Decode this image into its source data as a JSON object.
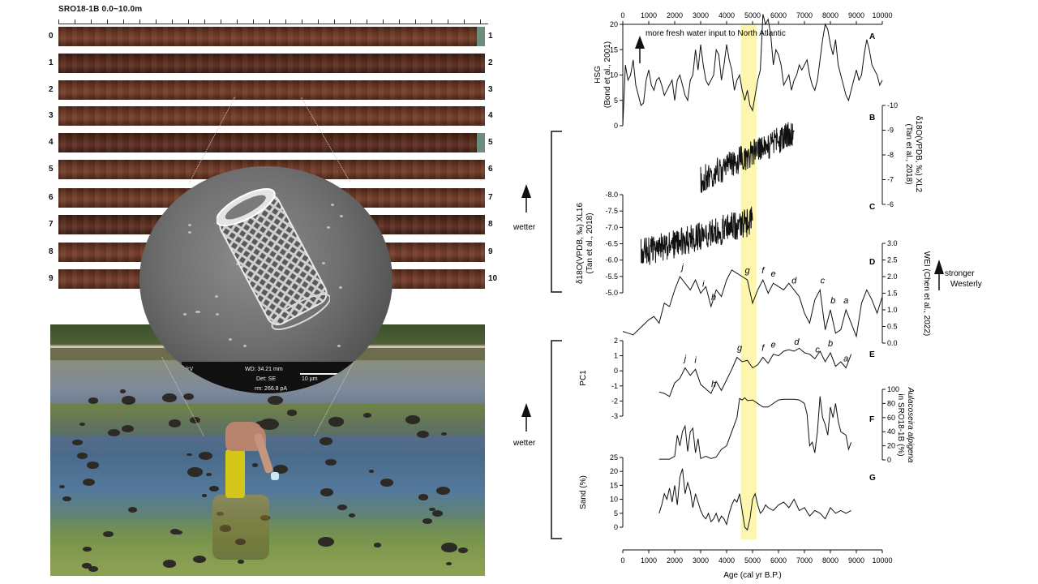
{
  "figure": {
    "core_title": "SRO18-1B 0.0~10.0m",
    "left_depth_labels": [
      "0",
      "1",
      "2",
      "3",
      "4",
      "5",
      "6",
      "7",
      "8",
      "9"
    ],
    "right_depth_labels": [
      "1",
      "2",
      "3",
      "4",
      "5",
      "6",
      "7",
      "8",
      "9",
      "10"
    ],
    "sem_info": {
      "kv": "kV",
      "wd": "WD: 34.21 mm",
      "det": "Det: SE",
      "scale": "10 µm",
      "current": "rm: 266.8 pA"
    }
  },
  "annotations": {
    "fresh_water": "more fresh water input to North Atlantic",
    "wetter_upper": "wetter",
    "wetter_lower": "wetter",
    "stronger_westerly": "stronger Westerly",
    "highlight_band": "4500-5200 cal yr B.P."
  },
  "chart_data": [
    {
      "type": "line",
      "panel": "A",
      "ylabel": "HSG",
      "ylabel2": "(Bond et al., 2001)",
      "ylim": [
        0,
        20
      ],
      "yticks": [
        "0",
        "5",
        "10",
        "15",
        "20"
      ],
      "x": [
        0,
        100,
        200,
        300,
        400,
        500,
        600,
        700,
        800,
        900,
        1000,
        1100,
        1200,
        1300,
        1400,
        1500,
        1600,
        1700,
        1800,
        1900,
        2000,
        2100,
        2200,
        2300,
        2400,
        2500,
        2600,
        2700,
        2800,
        2900,
        3000,
        3100,
        3200,
        3300,
        3400,
        3500,
        3600,
        3700,
        3800,
        3900,
        4000,
        4100,
        4200,
        4300,
        4400,
        4500,
        4600,
        4700,
        4800,
        4900,
        5000,
        5100,
        5200,
        5300,
        5400,
        5500,
        5600,
        5700,
        5800,
        5900,
        6000,
        6100,
        6200,
        6300,
        6400,
        6500,
        6600,
        6700,
        6800,
        6900,
        7000,
        7100,
        7200,
        7300,
        7400,
        7500,
        7600,
        7700,
        7800,
        7900,
        8000,
        8100,
        8200,
        8300,
        8400,
        8500,
        8600,
        8700,
        8800,
        8900,
        9000,
        9100,
        9200,
        9300,
        9400,
        9500,
        9600,
        9700,
        9800,
        9900,
        10000
      ],
      "y": [
        0,
        12,
        9,
        10,
        13,
        8,
        6,
        4,
        4.5,
        9,
        11,
        8,
        7,
        9,
        9.5,
        8,
        6,
        7,
        8,
        9,
        5,
        9,
        10,
        8,
        6,
        5,
        9,
        10,
        15,
        11,
        16,
        12,
        9,
        8,
        9,
        10,
        15,
        14,
        9,
        12,
        16,
        13,
        11,
        7,
        9,
        10,
        7,
        5,
        7,
        4,
        3,
        6,
        9,
        11,
        22,
        20,
        21,
        18,
        12,
        15,
        14,
        12,
        8,
        9,
        10,
        7,
        9,
        10,
        12,
        11,
        12,
        13,
        10,
        8,
        7,
        9,
        13,
        17,
        20,
        19,
        16,
        14,
        17,
        12,
        10,
        8,
        6,
        5,
        7,
        9,
        11,
        9,
        10,
        14,
        17,
        15,
        12,
        11,
        10,
        8,
        9
      ],
      "label": "A"
    },
    {
      "type": "line",
      "panel": "B",
      "ylabel": "δ18O(VPDB, ‰) XL2",
      "ylabel2": "(Tan et al., 2018)",
      "ylim": [
        -10,
        -6
      ],
      "yticks": [
        "-10",
        "-9",
        "-8",
        "-7",
        "-6"
      ],
      "x_range": [
        3000,
        6600
      ],
      "label": "B"
    },
    {
      "type": "line",
      "panel": "C",
      "ylabel": "δ18O(VPDB, ‰) XL16",
      "ylabel2": "(Tan et al., 2018)",
      "ylim": [
        -8.0,
        -5.0
      ],
      "yticks": [
        "-8.0",
        "-7.5",
        "-7.0",
        "-6.5",
        "-6.0",
        "-5.5",
        "-5.0"
      ],
      "x_range": [
        700,
        5000
      ],
      "label": "C"
    },
    {
      "type": "line",
      "panel": "D",
      "ylabel": "WEI (Chen et al., 2022)",
      "ylim": [
        0,
        3
      ],
      "yticks": [
        "0.0",
        "0.5",
        "1.0",
        "1.5",
        "2.0",
        "2.5",
        "3.0"
      ],
      "x": [
        0,
        200,
        400,
        600,
        800,
        1000,
        1200,
        1400,
        1600,
        1800,
        2000,
        2200,
        2400,
        2600,
        2800,
        3000,
        3200,
        3400,
        3600,
        3800,
        4000,
        4200,
        4400,
        4600,
        4800,
        5000,
        5200,
        5400,
        5600,
        5800,
        6000,
        6200,
        6400,
        6600,
        6800,
        7000,
        7200,
        7400,
        7600,
        7800,
        8000,
        8200,
        8400,
        8600,
        8800,
        9000,
        9200,
        9400,
        9600,
        9800,
        10000
      ],
      "y": [
        0.35,
        0.3,
        0.25,
        0.4,
        0.55,
        0.7,
        0.8,
        0.6,
        1.2,
        1.1,
        1.6,
        2.0,
        1.8,
        1.6,
        1.9,
        1.5,
        1.7,
        1.1,
        1.6,
        1.4,
        1.9,
        2.2,
        2.1,
        2.0,
        1.9,
        1.2,
        1.6,
        1.9,
        1.5,
        1.8,
        1.7,
        1.6,
        1.8,
        1.6,
        1.4,
        0.9,
        0.6,
        1.3,
        1.6,
        0.4,
        1.0,
        0.3,
        0.4,
        1.0,
        0.6,
        0.2,
        1.2,
        1.6,
        1.3,
        0.9,
        1.4
      ],
      "peaks": [
        {
          "t": "j",
          "x": 2300
        },
        {
          "t": "i",
          "x": 3100
        },
        {
          "t": "h",
          "x": 3500
        },
        {
          "t": "g",
          "x": 4800
        },
        {
          "t": "f",
          "x": 5400
        },
        {
          "t": "e",
          "x": 5800
        },
        {
          "t": "d",
          "x": 6600
        },
        {
          "t": "c",
          "x": 7700
        },
        {
          "t": "b",
          "x": 8100
        },
        {
          "t": "a",
          "x": 8600
        }
      ],
      "label": "D"
    },
    {
      "type": "line",
      "panel": "E",
      "ylabel": "PC1",
      "ylim": [
        -3,
        2
      ],
      "yticks": [
        "-3",
        "-2",
        "-1",
        "0",
        "1",
        "2"
      ],
      "x": [
        1400,
        1600,
        1800,
        2000,
        2200,
        2400,
        2600,
        2800,
        3000,
        3200,
        3400,
        3600,
        3800,
        4000,
        4200,
        4400,
        4600,
        4800,
        5000,
        5200,
        5400,
        5600,
        5800,
        6000,
        6200,
        6400,
        6600,
        6800,
        7000,
        7200,
        7400,
        7600,
        7800,
        8000,
        8200,
        8400,
        8600,
        8800
      ],
      "y": [
        -1.4,
        -1.5,
        -1.7,
        -0.8,
        -0.5,
        0.2,
        -0.3,
        0.1,
        -0.9,
        -1.2,
        -1.5,
        -0.7,
        -1.3,
        -0.6,
        0.1,
        0.9,
        0.6,
        0.7,
        0.2,
        0.4,
        0.9,
        0.5,
        1.1,
        1.0,
        1.3,
        1.4,
        1.3,
        1.5,
        1.2,
        1.1,
        0.8,
        1.3,
        0.6,
        1.2,
        0.3,
        0.6,
        0.2,
        1.1
      ],
      "peaks": [
        {
          "t": "j",
          "x": 2400
        },
        {
          "t": "i",
          "x": 2800
        },
        {
          "t": "h",
          "x": 3500
        },
        {
          "t": "g",
          "x": 4500
        },
        {
          "t": "f",
          "x": 5400
        },
        {
          "t": "e",
          "x": 5800
        },
        {
          "t": "d",
          "x": 6700
        },
        {
          "t": "c",
          "x": 7500
        },
        {
          "t": "b",
          "x": 8000
        },
        {
          "t": "a",
          "x": 8600
        }
      ],
      "label": "E"
    },
    {
      "type": "line",
      "panel": "F",
      "ylabel": "Aulacoseira alpigena",
      "ylabel2": "in SRO18-1B (%)",
      "ylim": [
        0,
        100
      ],
      "yticks": [
        "0",
        "20",
        "40",
        "60",
        "80",
        "100"
      ],
      "x": [
        1400,
        1800,
        2000,
        2100,
        2200,
        2300,
        2400,
        2500,
        2600,
        2700,
        2800,
        2900,
        3000,
        3200,
        3400,
        3600,
        3800,
        4000,
        4200,
        4400,
        4500,
        4600,
        4700,
        4800,
        5000,
        5200,
        5400,
        5600,
        5800,
        6000,
        6200,
        6400,
        6600,
        6800,
        7000,
        7100,
        7200,
        7300,
        7400,
        7500,
        7600,
        7700,
        7800,
        7900,
        8000,
        8100,
        8200,
        8300,
        8400,
        8600,
        8700,
        8800
      ],
      "y": [
        1,
        1,
        5,
        35,
        20,
        40,
        48,
        12,
        40,
        45,
        10,
        30,
        2,
        5,
        2,
        4,
        15,
        20,
        40,
        60,
        87,
        85,
        88,
        84,
        85,
        80,
        75,
        75,
        80,
        85,
        86,
        86,
        86,
        85,
        80,
        65,
        20,
        25,
        10,
        40,
        90,
        60,
        50,
        35,
        75,
        60,
        80,
        55,
        40,
        35,
        15,
        25
      ],
      "label": "F"
    },
    {
      "type": "line",
      "panel": "G",
      "ylabel": "Sand (%)",
      "ylim": [
        0,
        25
      ],
      "yticks": [
        "0",
        "5",
        "10",
        "15",
        "20",
        "25"
      ],
      "x": [
        1400,
        1500,
        1600,
        1700,
        1800,
        1900,
        2000,
        2100,
        2200,
        2300,
        2400,
        2500,
        2600,
        2700,
        2800,
        2900,
        3000,
        3100,
        3200,
        3300,
        3400,
        3500,
        3600,
        3700,
        3800,
        3900,
        4000,
        4100,
        4200,
        4300,
        4400,
        4500,
        4600,
        4700,
        4800,
        4900,
        5000,
        5100,
        5200,
        5300,
        5400,
        5500,
        5600,
        5800,
        6000,
        6200,
        6400,
        6600,
        6800,
        7000,
        7200,
        7400,
        7600,
        7800,
        8000,
        8200,
        8400,
        8600,
        8800
      ],
      "y": [
        5,
        8,
        12,
        10,
        14,
        9,
        15,
        8,
        18,
        21,
        12,
        16,
        13,
        7,
        12,
        9,
        6,
        4,
        3,
        5,
        2,
        3,
        5,
        2,
        4,
        3,
        1,
        5,
        8,
        10,
        9,
        12,
        6,
        0,
        -1,
        3,
        10,
        12,
        8,
        5,
        6,
        8,
        7,
        6,
        8,
        9,
        7,
        10,
        6,
        7,
        4,
        6,
        5,
        3,
        7,
        5,
        6,
        5,
        6
      ],
      "label": "G"
    }
  ],
  "x_axis": {
    "xlabel": "Age (cal yr B.P.)",
    "xlim": [
      0,
      10000
    ],
    "ticks": [
      "0",
      "1000",
      "2000",
      "3000",
      "4000",
      "5000",
      "6000",
      "7000",
      "8000",
      "9000",
      "10000"
    ]
  }
}
